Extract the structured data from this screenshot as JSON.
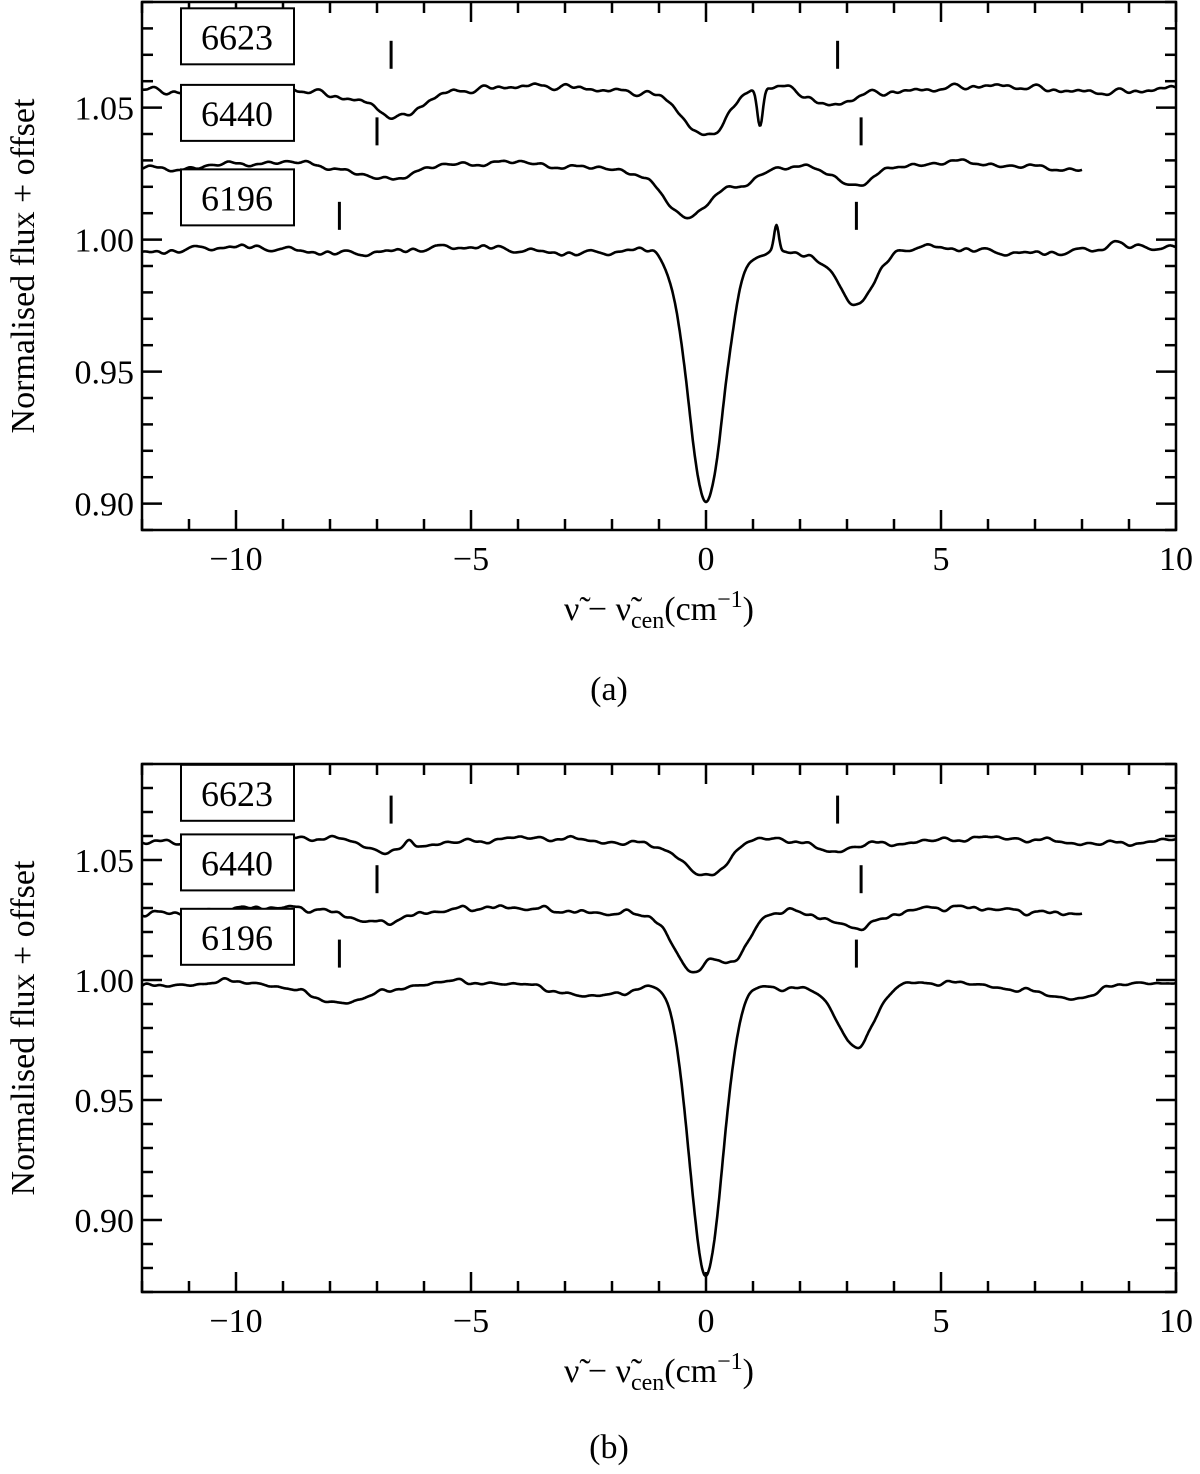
{
  "chart_data": [
    {
      "type": "line",
      "caption": "(a)",
      "xlabel": "ν̃ − ν̃cen(cm−1)",
      "xlabel_parts": {
        "nu": "ν̃",
        "minus": " − ",
        "nu_cen": "ν̃",
        "cen_sub": "cen",
        "unit_open": "(cm",
        "unit_sup": "−1",
        "unit_close": ")"
      },
      "ylabel": "Normalised flux + offset",
      "xlim": [
        -12,
        10
      ],
      "ylim": [
        0.89,
        1.09
      ],
      "xticks": [
        -10,
        -5,
        0,
        5,
        10
      ],
      "yticks": [
        0.9,
        0.95,
        1.0,
        1.05
      ],
      "ytick_labels": [
        "0.90",
        "0.95",
        "1.00",
        "1.05"
      ],
      "series": [
        {
          "name": "6623",
          "baseline": 1.057,
          "x_end": 10,
          "features": [
            {
              "center": -7.5,
              "depth": 0.004,
              "width": 0.8
            },
            {
              "center": -6.5,
              "depth": 0.008,
              "width": 0.4
            },
            {
              "center": 0.0,
              "depth": 0.018,
              "width": 0.45
            },
            {
              "center": 1.15,
              "depth": 0.014,
              "width": 0.06
            },
            {
              "center": 2.6,
              "depth": 0.006,
              "width": 0.4
            }
          ],
          "ticks": [
            -6.7,
            2.8
          ]
        },
        {
          "name": "6440",
          "baseline": 1.028,
          "x_end": 8,
          "features": [
            {
              "center": -6.9,
              "depth": 0.004,
              "width": 0.5
            },
            {
              "center": -0.4,
              "depth": 0.02,
              "width": 0.5
            },
            {
              "center": 0.75,
              "depth": 0.008,
              "width": 0.35
            },
            {
              "center": 3.2,
              "depth": 0.006,
              "width": 0.4
            }
          ],
          "ticks": [
            -7.0,
            3.3
          ]
        },
        {
          "name": "6196",
          "baseline": 0.996,
          "x_end": 10,
          "features": [
            {
              "center": 0.0,
              "depth": 0.096,
              "width": 0.38
            },
            {
              "center": 1.5,
              "depth": -0.01,
              "width": 0.05
            },
            {
              "center": 3.2,
              "depth": 0.02,
              "width": 0.4
            },
            {
              "center": 8.7,
              "depth": -0.003,
              "width": 0.1
            }
          ],
          "ticks": [
            -7.8,
            3.2
          ]
        }
      ]
    },
    {
      "type": "line",
      "caption": "(b)",
      "xlabel": "ν̃ − ν̃cen(cm−1)",
      "xlabel_parts": {
        "nu": "ν̃",
        "minus": " − ",
        "nu_cen": "ν̃",
        "cen_sub": "cen",
        "unit_open": "(cm",
        "unit_sup": "−1",
        "unit_close": ")"
      },
      "ylabel": "Normalised flux + offset",
      "xlim": [
        -12,
        10
      ],
      "ylim": [
        0.87,
        1.09
      ],
      "xticks": [
        -10,
        -5,
        0,
        5,
        10
      ],
      "yticks": [
        0.9,
        0.95,
        1.0,
        1.05
      ],
      "ytick_labels": [
        "0.90",
        "0.95",
        "1.00",
        "1.05"
      ],
      "series": [
        {
          "name": "6623",
          "baseline": 1.058,
          "x_end": 10,
          "features": [
            {
              "center": -6.8,
              "depth": 0.004,
              "width": 0.4
            },
            {
              "center": -6.3,
              "depth": -0.003,
              "width": 0.08
            },
            {
              "center": 0.0,
              "depth": 0.015,
              "width": 0.45
            },
            {
              "center": 2.6,
              "depth": 0.004,
              "width": 0.4
            }
          ],
          "ticks": [
            -6.7,
            2.8
          ]
        },
        {
          "name": "6440",
          "baseline": 1.029,
          "x_end": 8,
          "features": [
            {
              "center": -7.0,
              "depth": 0.004,
              "width": 0.5
            },
            {
              "center": -0.3,
              "depth": 0.025,
              "width": 0.4
            },
            {
              "center": 0.6,
              "depth": 0.02,
              "width": 0.35
            },
            {
              "center": 3.2,
              "depth": 0.006,
              "width": 0.5
            }
          ],
          "ticks": [
            -7.0,
            3.3
          ]
        },
        {
          "name": "6196",
          "baseline": 0.998,
          "x_end": 10,
          "features": [
            {
              "center": -7.8,
              "depth": 0.006,
              "width": 0.7
            },
            {
              "center": -2.3,
              "depth": 0.004,
              "width": 0.6
            },
            {
              "center": 0.0,
              "depth": 0.121,
              "width": 0.36
            },
            {
              "center": 3.2,
              "depth": 0.025,
              "width": 0.4
            },
            {
              "center": 7.8,
              "depth": 0.005,
              "width": 0.6
            }
          ],
          "ticks": [
            -7.8,
            3.2
          ]
        }
      ]
    }
  ]
}
